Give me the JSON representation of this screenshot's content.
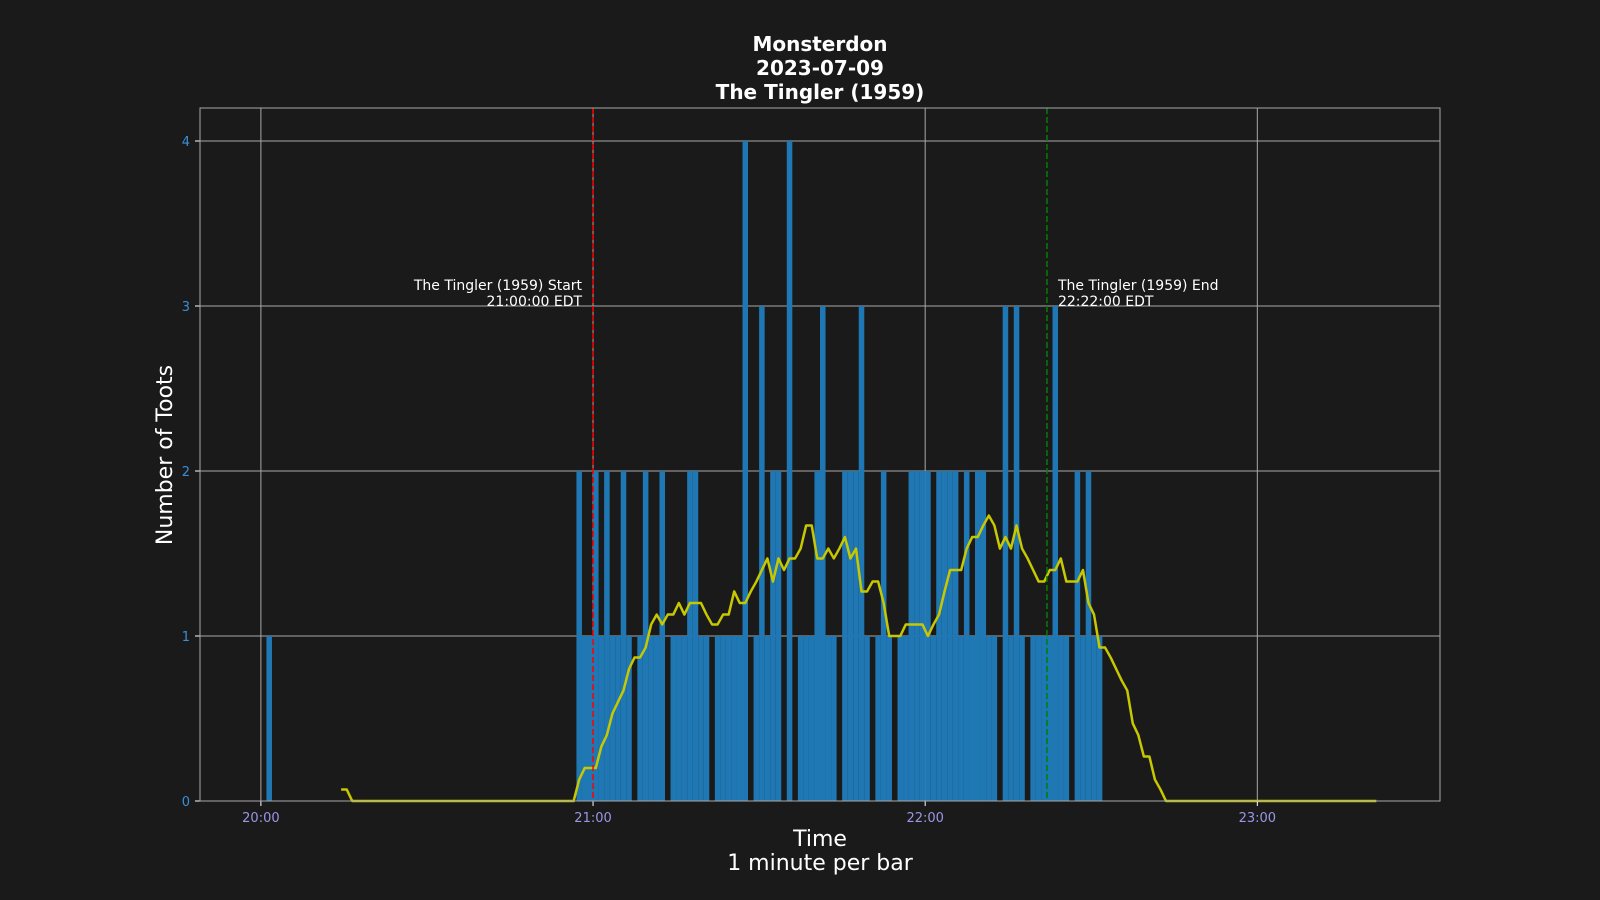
{
  "chart_data": {
    "type": "bar",
    "title_lines": [
      "Monsterdon",
      "2023-07-09",
      "The Tingler (1959)"
    ],
    "xlabel_lines": [
      "Time",
      "1 minute per bar"
    ],
    "ylabel": "Number of Toots",
    "x_unit": "minutes after 20:00 (EDT, 2023-07-09)",
    "xlim": [
      "19:49",
      "23:33"
    ],
    "ylim": [
      0,
      4.2
    ],
    "x_ticks": [
      {
        "label": "20:00",
        "minute": 0
      },
      {
        "label": "21:00",
        "minute": 60
      },
      {
        "label": "22:00",
        "minute": 120
      },
      {
        "label": "23:00",
        "minute": 180
      }
    ],
    "y_ticks": [
      0,
      1,
      2,
      3,
      4
    ],
    "grid": true,
    "colors": {
      "background": "#1a1a1a",
      "bars": "#1f77b4",
      "rolling_line": "#c8c800",
      "grid": "#a8a8a8",
      "start_line": "#ff0000",
      "end_line": "#008000"
    },
    "series": [
      {
        "kind": "bar",
        "values": [
          [
            1,
            1
          ],
          [
            57,
            2
          ],
          [
            58,
            1
          ],
          [
            59,
            1
          ],
          [
            60,
            2
          ],
          [
            61,
            1
          ],
          [
            62,
            2
          ],
          [
            63,
            1
          ],
          [
            64,
            1
          ],
          [
            65,
            2
          ],
          [
            66,
            1
          ],
          [
            67,
            0
          ],
          [
            68,
            1
          ],
          [
            69,
            2
          ],
          [
            70,
            1
          ],
          [
            71,
            1
          ],
          [
            72,
            2
          ],
          [
            73,
            0
          ],
          [
            74,
            1
          ],
          [
            75,
            1
          ],
          [
            76,
            1
          ],
          [
            77,
            2
          ],
          [
            78,
            2
          ],
          [
            79,
            1
          ],
          [
            80,
            1
          ],
          [
            81,
            0
          ],
          [
            82,
            1
          ],
          [
            83,
            1
          ],
          [
            84,
            1
          ],
          [
            85,
            1
          ],
          [
            86,
            1
          ],
          [
            87,
            4
          ],
          [
            88,
            0
          ],
          [
            89,
            1
          ],
          [
            90,
            3
          ],
          [
            91,
            1
          ],
          [
            92,
            2
          ],
          [
            93,
            2
          ],
          [
            94,
            0
          ],
          [
            95,
            4
          ],
          [
            96,
            0
          ],
          [
            97,
            1
          ],
          [
            98,
            1
          ],
          [
            99,
            1
          ],
          [
            100,
            2
          ],
          [
            101,
            3
          ],
          [
            102,
            1
          ],
          [
            103,
            1
          ],
          [
            104,
            0
          ],
          [
            105,
            2
          ],
          [
            106,
            2
          ],
          [
            107,
            2
          ],
          [
            108,
            3
          ],
          [
            109,
            1
          ],
          [
            110,
            0
          ],
          [
            111,
            1
          ],
          [
            112,
            2
          ],
          [
            113,
            1
          ],
          [
            114,
            0
          ],
          [
            115,
            1
          ],
          [
            116,
            1
          ],
          [
            117,
            2
          ],
          [
            118,
            2
          ],
          [
            119,
            2
          ],
          [
            120,
            2
          ],
          [
            121,
            1
          ],
          [
            122,
            2
          ],
          [
            123,
            2
          ],
          [
            124,
            2
          ],
          [
            125,
            2
          ],
          [
            126,
            1
          ],
          [
            127,
            2
          ],
          [
            128,
            1
          ],
          [
            129,
            2
          ],
          [
            130,
            2
          ],
          [
            131,
            1
          ],
          [
            132,
            1
          ],
          [
            133,
            0
          ],
          [
            134,
            3
          ],
          [
            135,
            1
          ],
          [
            136,
            3
          ],
          [
            137,
            1
          ],
          [
            138,
            0
          ],
          [
            139,
            1
          ],
          [
            140,
            1
          ],
          [
            141,
            1
          ],
          [
            142,
            1
          ],
          [
            143,
            3
          ],
          [
            144,
            1
          ],
          [
            145,
            1
          ],
          [
            146,
            0
          ],
          [
            147,
            2
          ],
          [
            148,
            1
          ],
          [
            149,
            2
          ],
          [
            150,
            1
          ],
          [
            151,
            1
          ]
        ]
      },
      {
        "kind": "line",
        "points": [
          [
            14,
            0.07
          ],
          [
            15,
            0.07
          ],
          [
            16,
            0.0
          ],
          [
            56,
            0.0
          ],
          [
            57,
            0.13
          ],
          [
            58,
            0.2
          ],
          [
            59,
            0.2
          ],
          [
            60,
            0.2
          ],
          [
            61,
            0.33
          ],
          [
            62,
            0.4
          ],
          [
            63,
            0.53
          ],
          [
            64,
            0.6
          ],
          [
            65,
            0.67
          ],
          [
            66,
            0.8
          ],
          [
            67,
            0.87
          ],
          [
            68,
            0.87
          ],
          [
            69,
            0.93
          ],
          [
            70,
            1.07
          ],
          [
            71,
            1.13
          ],
          [
            72,
            1.07
          ],
          [
            73,
            1.13
          ],
          [
            74,
            1.13
          ],
          [
            75,
            1.2
          ],
          [
            76,
            1.13
          ],
          [
            77,
            1.2
          ],
          [
            78,
            1.2
          ],
          [
            79,
            1.2
          ],
          [
            80,
            1.13
          ],
          [
            81,
            1.07
          ],
          [
            82,
            1.07
          ],
          [
            83,
            1.13
          ],
          [
            84,
            1.13
          ],
          [
            85,
            1.27
          ],
          [
            86,
            1.2
          ],
          [
            87,
            1.2
          ],
          [
            88,
            1.27
          ],
          [
            89,
            1.33
          ],
          [
            90,
            1.4
          ],
          [
            91,
            1.47
          ],
          [
            92,
            1.33
          ],
          [
            93,
            1.47
          ],
          [
            94,
            1.4
          ],
          [
            95,
            1.47
          ],
          [
            96,
            1.47
          ],
          [
            97,
            1.53
          ],
          [
            98,
            1.67
          ],
          [
            99,
            1.67
          ],
          [
            100,
            1.47
          ],
          [
            101,
            1.47
          ],
          [
            102,
            1.53
          ],
          [
            103,
            1.47
          ],
          [
            104,
            1.53
          ],
          [
            105,
            1.6
          ],
          [
            106,
            1.47
          ],
          [
            107,
            1.53
          ],
          [
            108,
            1.27
          ],
          [
            109,
            1.27
          ],
          [
            110,
            1.33
          ],
          [
            111,
            1.33
          ],
          [
            112,
            1.2
          ],
          [
            113,
            1.0
          ],
          [
            114,
            1.0
          ],
          [
            115,
            1.0
          ],
          [
            116,
            1.07
          ],
          [
            117,
            1.07
          ],
          [
            118,
            1.07
          ],
          [
            119,
            1.07
          ],
          [
            120,
            1.0
          ],
          [
            121,
            1.07
          ],
          [
            122,
            1.13
          ],
          [
            123,
            1.27
          ],
          [
            124,
            1.4
          ],
          [
            125,
            1.4
          ],
          [
            126,
            1.4
          ],
          [
            127,
            1.53
          ],
          [
            128,
            1.6
          ],
          [
            129,
            1.6
          ],
          [
            130,
            1.67
          ],
          [
            131,
            1.73
          ],
          [
            132,
            1.67
          ],
          [
            133,
            1.53
          ],
          [
            134,
            1.6
          ],
          [
            135,
            1.53
          ],
          [
            136,
            1.67
          ],
          [
            137,
            1.53
          ],
          [
            138,
            1.47
          ],
          [
            139,
            1.4
          ],
          [
            140,
            1.33
          ],
          [
            141,
            1.33
          ],
          [
            142,
            1.4
          ],
          [
            143,
            1.4
          ],
          [
            144,
            1.47
          ],
          [
            145,
            1.33
          ],
          [
            146,
            1.33
          ],
          [
            147,
            1.33
          ],
          [
            148,
            1.4
          ],
          [
            149,
            1.2
          ],
          [
            150,
            1.13
          ],
          [
            151,
            0.93
          ],
          [
            152,
            0.93
          ],
          [
            153,
            0.87
          ],
          [
            154,
            0.8
          ],
          [
            155,
            0.73
          ],
          [
            156,
            0.67
          ],
          [
            157,
            0.47
          ],
          [
            158,
            0.4
          ],
          [
            159,
            0.27
          ],
          [
            160,
            0.27
          ],
          [
            161,
            0.13
          ],
          [
            162,
            0.07
          ],
          [
            163,
            0.0
          ],
          [
            201,
            0.0
          ]
        ]
      }
    ],
    "annotations": [
      {
        "kind": "vline",
        "minute": 60,
        "style": "dashed",
        "color": "#ff0000",
        "label_lines": [
          "The Tingler (1959) Start",
          "21:00:00 EDT"
        ],
        "label_side": "left"
      },
      {
        "kind": "vline",
        "minute": 142,
        "style": "dashed",
        "color": "#008000",
        "label_lines": [
          "The Tingler (1959) End",
          "22:22:00 EDT"
        ],
        "label_side": "right"
      }
    ]
  }
}
